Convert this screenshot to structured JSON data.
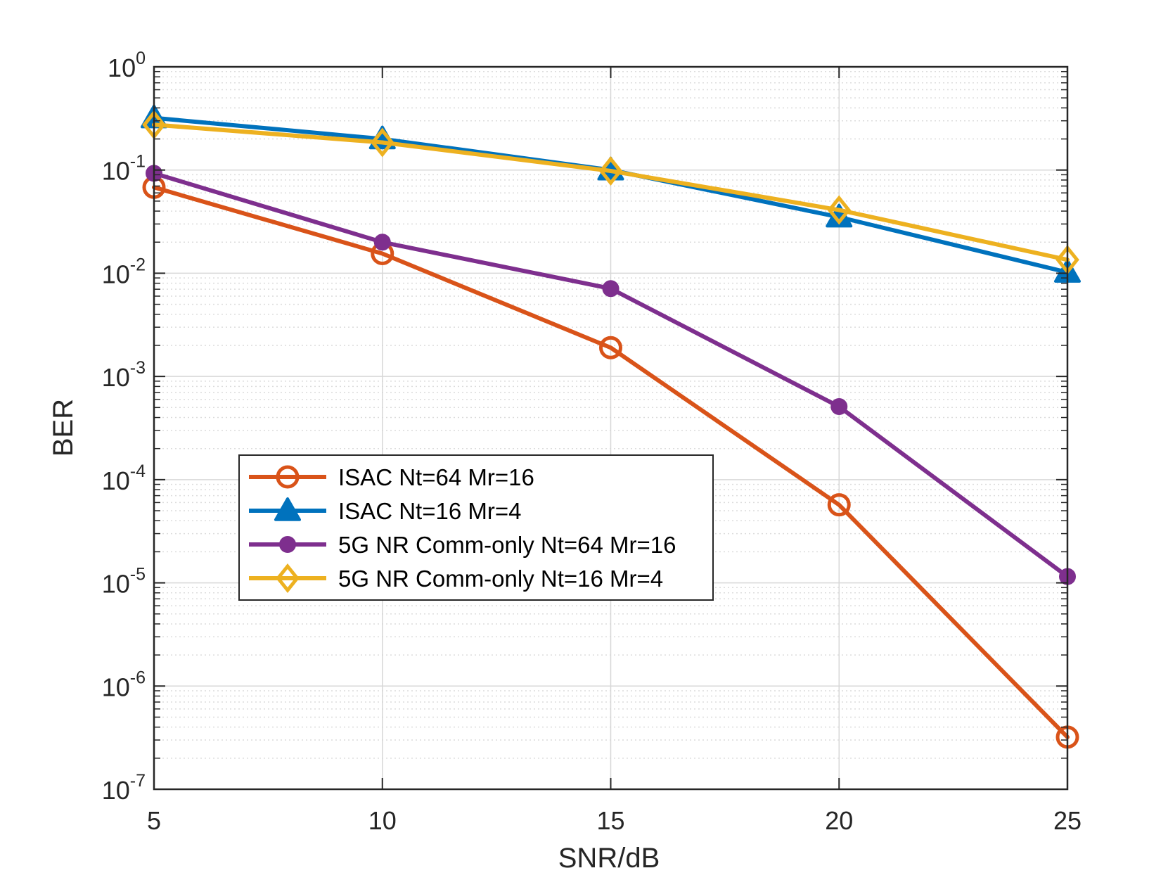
{
  "chart_data": {
    "type": "line",
    "title": "",
    "xlabel": "SNR/dB",
    "ylabel": "BER",
    "xscale": "linear",
    "yscale": "log",
    "xlim": [
      5,
      25
    ],
    "ylim": [
      1e-07,
      1
    ],
    "grid": true,
    "minor_grid": true,
    "legend_position": "lower-left",
    "x": [
      5,
      10,
      15,
      20,
      25
    ],
    "x_tick_labels": [
      "5",
      "10",
      "15",
      "20",
      "25"
    ],
    "y_ticks": [
      {
        "base": "10",
        "exp": "0",
        "value": 1
      },
      {
        "base": "10",
        "exp": "-1",
        "value": 0.1
      },
      {
        "base": "10",
        "exp": "-2",
        "value": 0.01
      },
      {
        "base": "10",
        "exp": "-3",
        "value": 0.001
      },
      {
        "base": "10",
        "exp": "-4",
        "value": 0.0001
      },
      {
        "base": "10",
        "exp": "-5",
        "value": 1e-05
      },
      {
        "base": "10",
        "exp": "-6",
        "value": 1e-06
      },
      {
        "base": "10",
        "exp": "-7",
        "value": 1e-07
      }
    ],
    "series": [
      {
        "name": "ISAC Nt=64 Mr=16",
        "color": "#D95319",
        "marker": "circle-open",
        "values": [
          0.068,
          0.0155,
          0.0019,
          5.7e-05,
          3.2e-07
        ]
      },
      {
        "name": "ISAC Nt=16 Mr=4",
        "color": "#0072BD",
        "marker": "triangle",
        "values": [
          0.32,
          0.2,
          0.1,
          0.035,
          0.0102
        ]
      },
      {
        "name": "5G NR Comm-only Nt=64 Mr=16",
        "color": "#7E2F8E",
        "marker": "circle-filled",
        "values": [
          0.093,
          0.02,
          0.0071,
          0.00051,
          1.15e-05
        ]
      },
      {
        "name": "5G NR Comm-only Nt=16 Mr=4",
        "color": "#EDB120",
        "marker": "diamond",
        "values": [
          0.275,
          0.185,
          0.098,
          0.041,
          0.0135
        ]
      }
    ]
  }
}
